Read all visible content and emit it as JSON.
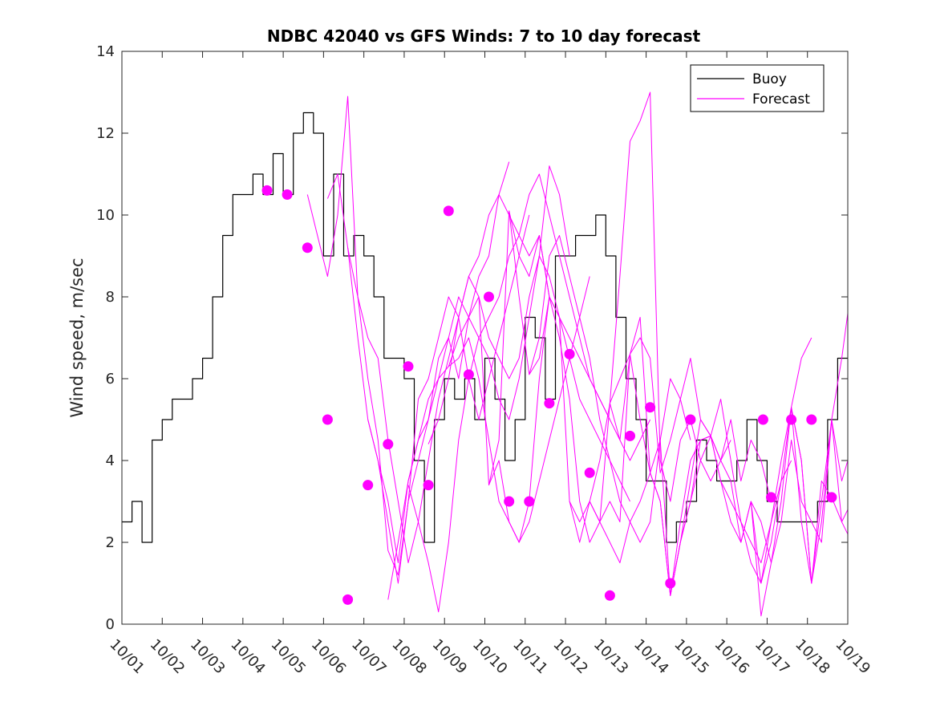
{
  "chart_data": {
    "type": "line",
    "title": "NDBC 42040 vs GFS Winds: 7 to 10 day forecast",
    "xlabel": "",
    "ylabel": "Wind speed, m/sec",
    "xlim": [
      0,
      18
    ],
    "ylim": [
      0,
      14
    ],
    "x_tick_labels": [
      "10/01",
      "10/02",
      "10/03",
      "10/04",
      "10/05",
      "10/06",
      "10/07",
      "10/08",
      "10/09",
      "10/10",
      "10/11",
      "10/12",
      "10/13",
      "10/14",
      "10/15",
      "10/16",
      "10/17",
      "10/18",
      "10/19"
    ],
    "y_ticks": [
      0,
      2,
      4,
      6,
      8,
      10,
      12,
      14
    ],
    "legend": {
      "position": "top-right",
      "entries": [
        "Buoy",
        "Forecast"
      ]
    },
    "colors": {
      "buoy": "#000000",
      "forecast": "#ff00ff",
      "axis": "#262626"
    },
    "series": [
      {
        "name": "Buoy",
        "x": [
          0.0,
          0.25,
          0.5,
          0.75,
          1.0,
          1.25,
          1.5,
          1.75,
          2.0,
          2.25,
          2.5,
          2.75,
          3.0,
          3.25,
          3.5,
          3.75,
          4.0,
          4.25,
          4.5,
          4.75,
          5.0,
          5.25,
          5.5,
          5.75,
          6.0,
          6.25,
          6.5,
          6.75,
          7.0,
          7.25,
          7.5,
          7.75,
          8.0,
          8.25,
          8.5,
          8.75,
          9.0,
          9.25,
          9.5,
          9.75,
          10.0,
          10.25,
          10.5,
          10.75,
          11.0,
          11.25,
          11.5,
          11.75,
          12.0,
          12.25,
          12.5,
          12.75,
          13.0,
          13.25,
          13.5,
          13.75,
          14.0,
          14.25,
          14.5,
          14.75,
          15.0,
          15.25,
          15.5,
          15.75,
          16.0,
          16.25,
          16.5,
          16.75,
          17.0,
          17.25,
          17.5,
          17.75
        ],
        "values": [
          2.5,
          3.0,
          2.0,
          4.5,
          5.0,
          5.5,
          5.5,
          6.0,
          6.5,
          8.0,
          9.5,
          10.5,
          10.5,
          11.0,
          10.5,
          11.5,
          10.5,
          12.0,
          12.5,
          12.0,
          9.0,
          11.0,
          9.0,
          9.5,
          9.0,
          8.0,
          6.5,
          6.5,
          6.0,
          4.0,
          2.0,
          5.0,
          6.0,
          5.5,
          6.0,
          5.0,
          6.5,
          5.5,
          4.0,
          5.0,
          7.5,
          7.0,
          5.5,
          9.0,
          9.0,
          9.5,
          9.5,
          10.0,
          9.0,
          7.5,
          6.0,
          5.0,
          3.5,
          3.5,
          2.0,
          2.5,
          3.0,
          4.5,
          4.0,
          3.5,
          3.5,
          4.0,
          5.0,
          4.0,
          3.0,
          2.5,
          2.5,
          2.5,
          2.5,
          3.0,
          5.0,
          6.5
        ]
      },
      {
        "name": "Forecast run 10/05",
        "x": [
          4.6,
          4.85,
          5.1,
          5.35,
          5.6,
          5.85,
          6.1,
          6.35,
          6.6,
          6.85,
          7.1,
          7.35,
          7.6,
          7.85,
          8.1,
          8.35,
          8.6,
          8.85,
          9.1,
          9.35,
          9.6
        ],
        "values": [
          10.5,
          9.5,
          8.5,
          10.0,
          12.9,
          8.0,
          6.0,
          4.5,
          1.8,
          1.2,
          3.0,
          4.0,
          5.0,
          6.5,
          7.0,
          6.0,
          7.5,
          8.5,
          9.0,
          10.5,
          11.3
        ]
      },
      {
        "name": "Forecast run 10/06",
        "x": [
          5.1,
          5.35,
          5.6,
          5.85,
          6.1,
          6.35,
          6.6,
          6.85,
          7.1,
          7.35,
          7.6,
          7.85,
          8.1,
          8.35,
          8.6,
          8.85,
          9.1,
          9.35,
          9.6,
          9.85,
          10.1
        ],
        "values": [
          10.4,
          11.0,
          9.2,
          7.0,
          5.0,
          4.0,
          2.5,
          1.0,
          3.0,
          5.5,
          6.0,
          7.0,
          8.0,
          7.5,
          6.0,
          5.0,
          6.0,
          7.0,
          8.0,
          9.0,
          10.0
        ]
      },
      {
        "name": "Forecast run 10/07",
        "x": [
          5.6,
          5.85,
          6.1,
          6.35,
          6.6,
          6.85,
          7.1,
          7.35,
          7.6,
          7.85,
          8.1,
          8.35,
          8.6,
          8.85,
          9.1,
          9.35,
          9.6,
          9.85,
          10.1,
          10.35,
          10.6
        ],
        "values": [
          9.2,
          8.0,
          7.0,
          6.5,
          4.5,
          3.0,
          1.5,
          2.5,
          4.0,
          5.5,
          6.5,
          7.5,
          8.5,
          9.0,
          10.0,
          10.5,
          10.0,
          9.5,
          9.0,
          9.5,
          8.0
        ]
      },
      {
        "name": "Forecast run 10/08",
        "x": [
          6.1,
          6.35,
          6.6,
          6.85,
          7.1,
          7.35,
          7.6,
          7.85,
          8.1,
          8.35,
          8.6,
          8.85,
          9.1,
          9.35,
          9.6,
          9.85,
          10.1,
          10.35,
          10.6,
          10.85,
          11.1
        ],
        "values": [
          5.0,
          4.0,
          3.0,
          1.5,
          3.5,
          4.5,
          5.0,
          6.0,
          7.0,
          8.0,
          7.5,
          7.0,
          6.5,
          5.5,
          5.0,
          6.0,
          7.5,
          9.0,
          11.2,
          10.5,
          9.0
        ]
      },
      {
        "name": "Forecast run 10/09",
        "x": [
          6.6,
          6.85,
          7.1,
          7.35,
          7.6,
          7.85,
          8.1,
          8.35,
          8.6,
          8.85,
          9.1,
          9.35,
          9.6,
          9.85,
          10.1,
          10.35,
          10.6,
          10.85,
          11.1,
          11.35,
          11.6
        ],
        "values": [
          0.6,
          2.0,
          3.5,
          4.5,
          5.5,
          6.0,
          6.3,
          6.5,
          7.0,
          6.0,
          4.5,
          3.0,
          2.5,
          2.0,
          2.5,
          3.5,
          4.5,
          5.5,
          6.5,
          7.5,
          8.5
        ]
      },
      {
        "name": "Forecast run 10/10",
        "x": [
          7.1,
          7.35,
          7.6,
          7.85,
          8.1,
          8.35,
          8.6,
          8.85,
          9.1,
          9.35,
          9.6,
          9.85,
          10.1,
          10.35,
          10.6,
          10.85,
          11.1,
          11.35,
          11.6,
          11.85,
          12.1
        ],
        "values": [
          3.4,
          2.5,
          1.5,
          0.3,
          2.0,
          4.5,
          6.0,
          7.0,
          7.5,
          8.0,
          9.0,
          9.5,
          10.5,
          11.0,
          10.0,
          9.0,
          8.0,
          7.0,
          6.0,
          5.5,
          5.0
        ]
      },
      {
        "name": "Forecast run 10/11",
        "x": [
          7.6,
          7.85,
          8.1,
          8.35,
          8.6,
          8.85,
          9.1,
          9.35,
          9.6,
          9.85,
          10.1,
          10.35,
          10.6,
          10.85,
          11.1,
          11.35,
          11.6,
          11.85,
          12.1,
          12.35,
          12.6
        ],
        "values": [
          4.4,
          5.0,
          6.0,
          7.5,
          8.5,
          8.0,
          7.0,
          6.5,
          6.0,
          6.5,
          8.0,
          9.0,
          8.5,
          7.5,
          6.5,
          5.5,
          5.0,
          4.5,
          4.0,
          3.5,
          3.0
        ]
      },
      {
        "name": "Forecast run 10/12",
        "x": [
          8.1,
          8.35,
          8.6,
          8.85,
          9.1,
          9.35,
          9.6,
          9.85,
          10.1,
          10.35,
          10.6,
          10.85,
          11.1,
          11.35,
          11.6,
          11.85,
          12.1,
          12.35,
          12.6,
          12.85,
          13.1
        ],
        "values": [
          6.3,
          7.0,
          7.5,
          8.0,
          3.4,
          4.0,
          2.5,
          2.0,
          3.0,
          6.0,
          8.0,
          7.5,
          7.0,
          6.5,
          6.0,
          5.5,
          5.0,
          4.5,
          4.0,
          4.5,
          5.0
        ]
      },
      {
        "name": "Forecast run 10/13",
        "x": [
          9.1,
          9.35,
          9.6,
          9.85,
          10.1,
          10.35,
          10.6,
          10.85,
          11.1,
          11.35,
          11.6,
          11.85,
          12.1,
          12.35,
          12.6,
          12.85,
          13.1,
          13.35,
          13.6,
          13.85,
          14.1
        ],
        "values": [
          3.4,
          4.5,
          10.1,
          8.0,
          6.1,
          7.0,
          9.0,
          9.5,
          8.5,
          7.5,
          6.5,
          5.0,
          4.0,
          3.0,
          2.5,
          2.0,
          2.5,
          4.5,
          6.0,
          5.5,
          4.5
        ]
      },
      {
        "name": "Forecast run 10/14",
        "x": [
          9.6,
          9.85,
          10.1,
          10.35,
          10.6,
          10.85,
          11.1,
          11.35,
          11.6,
          11.85,
          12.1,
          12.35,
          12.6,
          12.85,
          13.1,
          13.35,
          13.6,
          13.85,
          14.1,
          14.35,
          14.6
        ],
        "values": [
          10.1,
          9.0,
          8.5,
          9.5,
          8.0,
          7.0,
          5.5,
          3.0,
          2.0,
          2.5,
          3.0,
          2.5,
          6.6,
          7.0,
          6.5,
          3.7,
          4.5,
          5.5,
          6.5,
          5.0,
          4.6
        ]
      },
      {
        "name": "Forecast run 10/15",
        "x": [
          10.1,
          10.35,
          10.6,
          10.85,
          11.1,
          11.35,
          11.6,
          11.85,
          12.1,
          12.35,
          12.6,
          12.85,
          13.1,
          13.35,
          13.6,
          13.85,
          14.1,
          14.35,
          14.6,
          14.85,
          15.1
        ],
        "values": [
          6.1,
          6.5,
          8.0,
          7.5,
          3.0,
          2.0,
          3.0,
          2.5,
          5.4,
          8.5,
          11.8,
          12.3,
          13.0,
          4.0,
          3.0,
          4.5,
          5.0,
          4.0,
          3.5,
          4.0,
          4.5
        ]
      },
      {
        "name": "Forecast run 10/16",
        "x": [
          11.1,
          11.35,
          11.6,
          11.85,
          12.1,
          12.35,
          12.6,
          12.85,
          13.1,
          13.35,
          13.6,
          13.85,
          14.1,
          14.35,
          14.6,
          14.85,
          15.1,
          15.35,
          15.6,
          15.85,
          16.1
        ],
        "values": [
          3.0,
          2.5,
          3.0,
          4.0,
          5.4,
          6.0,
          6.6,
          7.5,
          3.7,
          3.0,
          0.7,
          2.0,
          3.5,
          5.0,
          4.6,
          4.0,
          5.0,
          3.5,
          4.5,
          4.0,
          3.0
        ]
      },
      {
        "name": "Forecast run 10/17",
        "x": [
          11.6,
          11.85,
          12.1,
          12.35,
          12.6,
          12.85,
          13.1,
          13.35,
          13.6,
          13.85,
          14.1,
          14.35,
          14.6,
          14.85,
          15.1,
          15.35,
          15.6,
          15.85,
          16.1,
          16.35,
          16.6
        ],
        "values": [
          3.0,
          2.5,
          2.0,
          1.5,
          2.5,
          3.0,
          3.7,
          4.5,
          0.7,
          2.5,
          4.0,
          4.5,
          4.6,
          3.5,
          3.0,
          2.5,
          2.0,
          1.5,
          2.5,
          3.5,
          4.0
        ]
      },
      {
        "name": "Forecast run 10/18",
        "x": [
          12.1,
          12.35,
          12.6,
          12.85,
          13.1,
          13.35,
          13.6,
          13.85,
          14.1,
          14.35,
          14.6,
          14.85,
          15.1,
          15.35,
          15.6,
          15.85,
          16.1,
          16.35,
          16.6,
          16.85,
          17.1
        ],
        "values": [
          5.4,
          4.5,
          6.6,
          5.0,
          3.7,
          3.0,
          0.7,
          2.0,
          3.0,
          4.0,
          4.6,
          5.5,
          4.0,
          2.5,
          1.5,
          1.0,
          2.0,
          3.5,
          5.3,
          6.5,
          7.0
        ]
      },
      {
        "name": "Forecast run 10/19",
        "x": [
          13.6,
          13.85,
          14.1,
          14.35,
          14.6,
          14.85,
          15.1,
          15.35,
          15.6,
          15.85,
          16.1,
          16.35,
          16.6,
          16.85,
          17.1,
          17.35,
          17.6,
          17.85,
          18.0
        ],
        "values": [
          0.7,
          2.0,
          3.0,
          4.5,
          4.6,
          3.5,
          2.5,
          2.0,
          3.0,
          0.2,
          1.5,
          3.0,
          5.3,
          4.0,
          1.0,
          3.0,
          5.0,
          6.5,
          7.6
        ]
      },
      {
        "name": "Forecast run 10/20",
        "x": [
          14.6,
          14.85,
          15.1,
          15.35,
          15.6,
          15.85,
          16.1,
          16.35,
          16.6,
          16.85,
          17.1,
          17.35,
          17.6,
          17.85,
          18.0
        ],
        "values": [
          4.6,
          4.0,
          3.5,
          2.0,
          3.0,
          2.5,
          1.5,
          2.5,
          4.5,
          3.0,
          2.5,
          2.0,
          5.0,
          3.5,
          4.0
        ]
      },
      {
        "name": "Forecast run 10/21",
        "x": [
          15.6,
          15.85,
          16.1,
          16.35,
          16.6,
          16.85,
          17.1,
          17.35,
          17.6,
          17.85,
          18.0
        ],
        "values": [
          3.0,
          1.0,
          2.5,
          4.0,
          5.3,
          2.5,
          1.0,
          2.5,
          5.0,
          2.5,
          2.2
        ]
      },
      {
        "name": "Forecast run 10/22",
        "x": [
          16.6,
          16.85,
          17.1,
          17.35,
          17.6,
          17.85,
          18.0
        ],
        "values": [
          5.3,
          4.0,
          1.0,
          3.5,
          3.1,
          2.5,
          2.8
        ]
      }
    ],
    "markers": {
      "x": [
        3.6,
        4.1,
        4.6,
        5.1,
        5.6,
        6.1,
        6.6,
        7.1,
        7.6,
        8.1,
        8.6,
        9.1,
        9.6,
        10.1,
        10.6,
        11.1,
        11.6,
        12.1,
        12.6,
        13.1,
        13.6,
        14.1,
        15.9,
        16.1,
        16.6,
        17.1,
        17.6
      ],
      "values": [
        10.6,
        10.5,
        9.2,
        5.0,
        0.6,
        3.4,
        4.4,
        6.3,
        3.4,
        10.1,
        6.1,
        8.0,
        3.0,
        3.0,
        5.4,
        6.6,
        3.7,
        0.7,
        4.6,
        5.3,
        1.0,
        5.0,
        5.0,
        3.1,
        5.0,
        5.0,
        3.1
      ]
    }
  }
}
